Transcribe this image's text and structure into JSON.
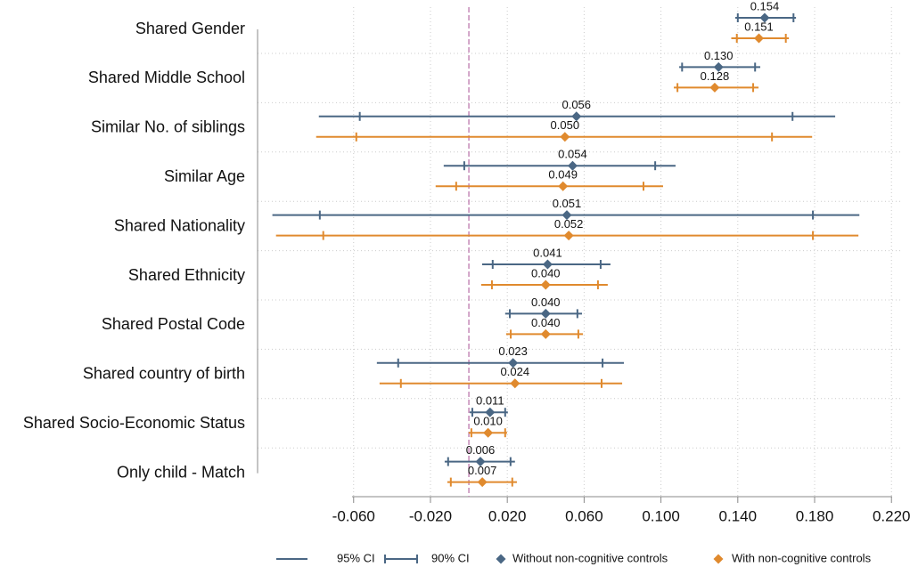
{
  "chart_data": {
    "type": "coefplot",
    "categories": [
      "Shared Gender",
      "Shared Middle School",
      "Similar No. of siblings",
      "Similar Age",
      "Shared Nationality",
      "Shared Ethnicity",
      "Shared Postal Code",
      "Shared country of birth",
      "Shared Socio-Economic Status",
      "Only child - Match"
    ],
    "series": [
      {
        "name": "Without non-cognitive controls",
        "color": "#4a6784",
        "values": [
          0.154,
          0.13,
          0.056,
          0.054,
          0.051,
          0.041,
          0.04,
          0.023,
          0.011,
          0.006
        ],
        "value_labels": [
          "0.154",
          "0.130",
          "0.056",
          "0.054",
          "0.051",
          "0.041",
          "0.040",
          "0.023",
          "0.011",
          "0.006"
        ],
        "ci95_low": [
          0.1387,
          0.1095,
          -0.0781,
          -0.0131,
          -0.1023,
          0.0069,
          0.0189,
          -0.0479,
          0.0004,
          -0.0126
        ],
        "ci95_high": [
          0.1703,
          0.1517,
          0.1907,
          0.1076,
          0.2033,
          0.0737,
          0.0589,
          0.0807,
          0.0203,
          0.024
        ],
        "ci90_low": [
          0.14,
          0.111,
          -0.0568,
          -0.0024,
          -0.0776,
          0.0124,
          0.0213,
          -0.0368,
          0.0018,
          -0.0108
        ],
        "ci90_high": [
          0.169,
          0.149,
          0.1685,
          0.097,
          0.1791,
          0.0686,
          0.0565,
          0.0696,
          0.0189,
          0.0217
        ]
      },
      {
        "name": "With non-cognitive controls",
        "color": "#e08a2e",
        "values": [
          0.151,
          0.128,
          0.05,
          0.049,
          0.052,
          0.04,
          0.04,
          0.024,
          0.01,
          0.007
        ],
        "value_labels": [
          "0.151",
          "0.128",
          "0.050",
          "0.049",
          "0.052",
          "0.040",
          "0.040",
          "0.024",
          "0.010",
          "0.007"
        ],
        "ci95_low": [
          0.1366,
          0.1067,
          -0.0795,
          -0.0173,
          -0.1004,
          0.0064,
          0.0194,
          -0.0465,
          -0.0001,
          -0.0112
        ],
        "ci95_high": [
          0.1666,
          0.1508,
          0.1787,
          0.1011,
          0.2028,
          0.0723,
          0.0594,
          0.0798,
          0.0199,
          0.025
        ],
        "ci90_low": [
          0.1395,
          0.1086,
          -0.0586,
          -0.0066,
          -0.0758,
          0.012,
          0.0218,
          -0.0354,
          0.0013,
          -0.0094
        ],
        "ci90_high": [
          0.165,
          0.148,
          0.1578,
          0.0909,
          0.1791,
          0.0672,
          0.057,
          0.0691,
          0.0189,
          0.0226
        ]
      }
    ],
    "ci_legend": [
      "95% CI",
      "90% CI"
    ],
    "refline": 0,
    "refline_color": "#c58ab8",
    "xlim": [
      -0.11,
      0.225
    ],
    "xticks": [
      {
        "value": -0.06,
        "label": "-0.060"
      },
      {
        "value": -0.02,
        "label": "-0.020"
      },
      {
        "value": 0.02,
        "label": "0.020"
      },
      {
        "value": 0.06,
        "label": "0.060"
      },
      {
        "value": 0.1,
        "label": "0.100"
      },
      {
        "value": 0.14,
        "label": "0.140"
      },
      {
        "value": 0.18,
        "label": "0.180"
      },
      {
        "value": 0.22,
        "label": "0.220"
      }
    ],
    "grid": true
  }
}
